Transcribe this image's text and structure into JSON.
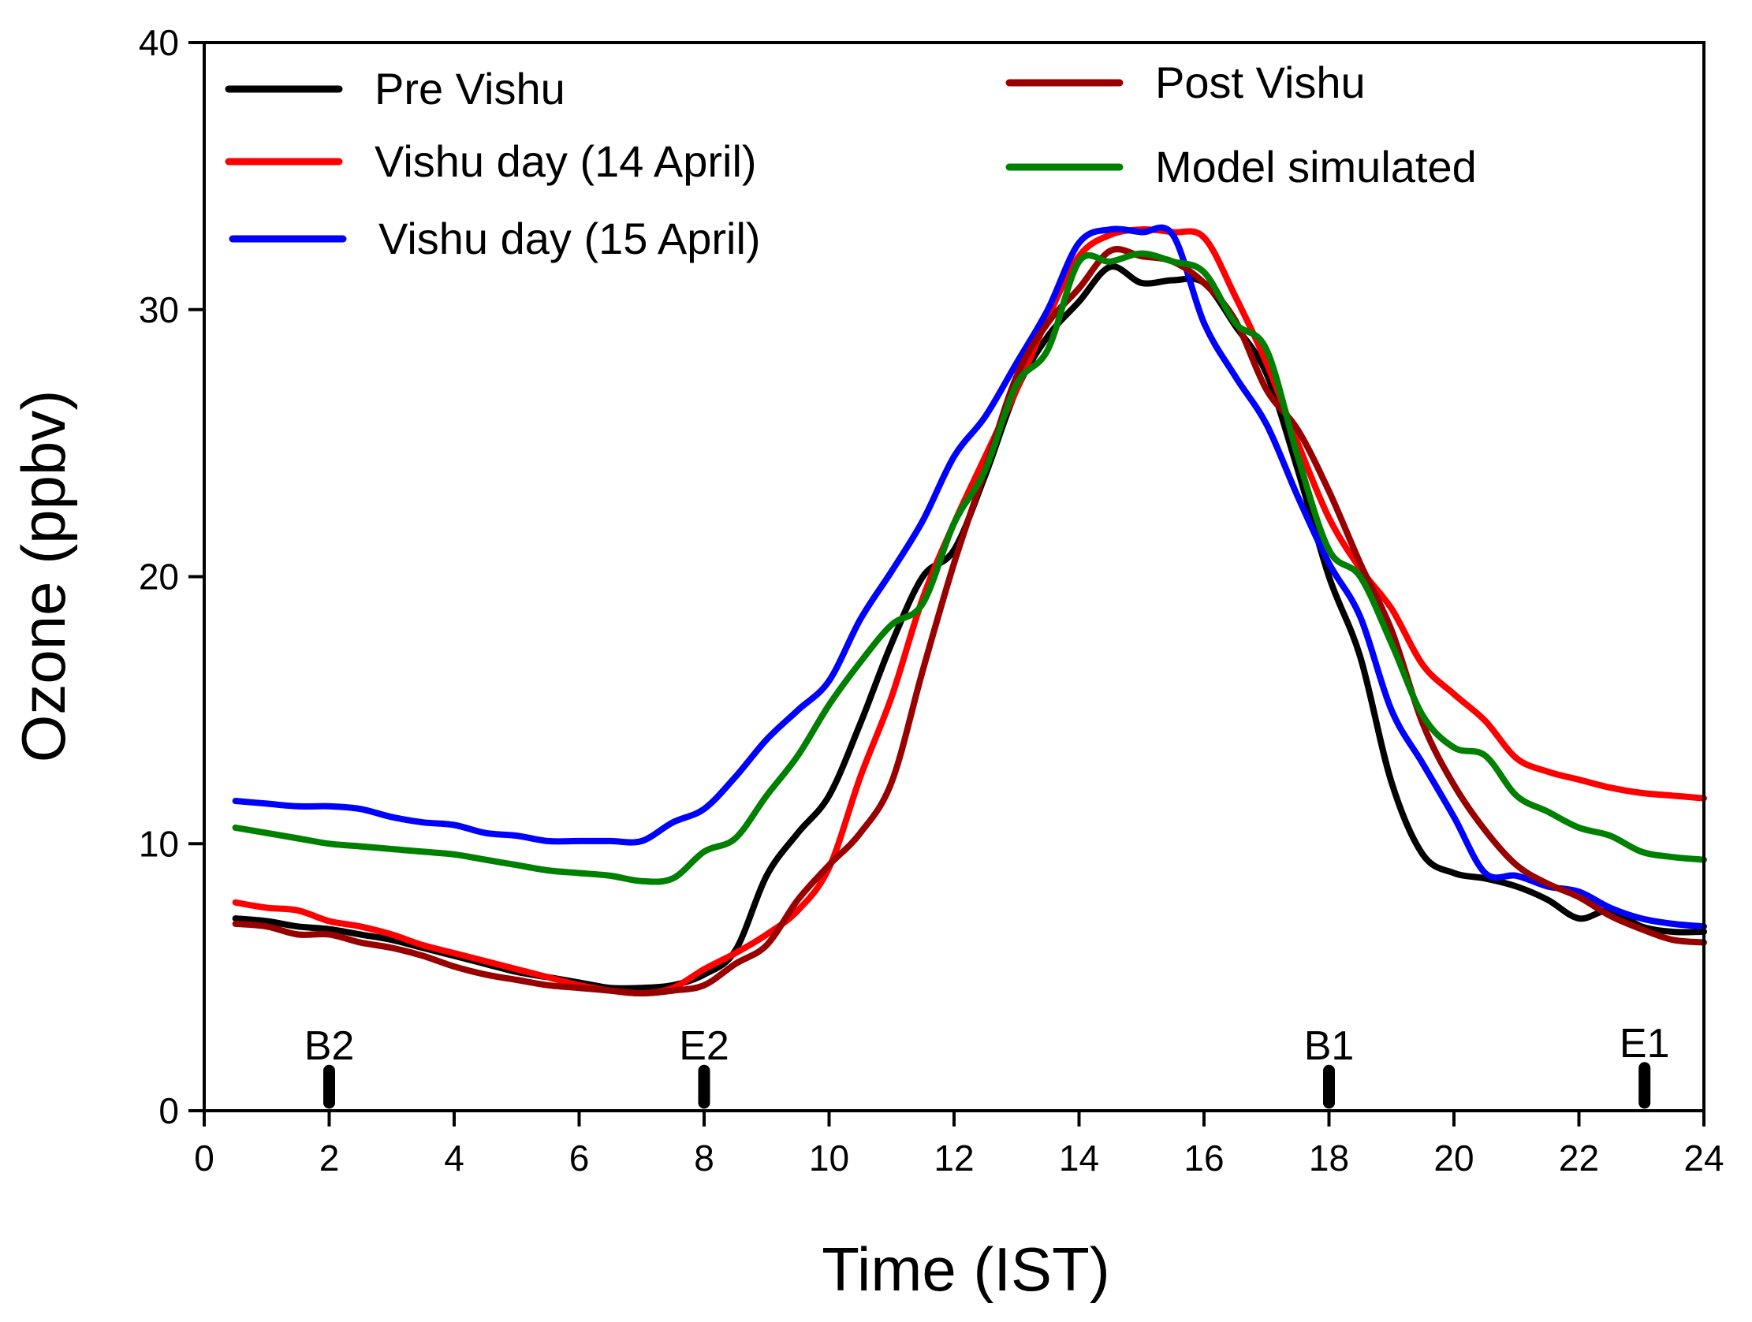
{
  "chart_data": {
    "type": "line",
    "xlabel": "Time (IST)",
    "ylabel": "Ozone (ppbv)",
    "xlim": [
      0,
      24
    ],
    "ylim": [
      0,
      40
    ],
    "xticks": [
      0,
      2,
      4,
      6,
      8,
      10,
      12,
      14,
      16,
      18,
      20,
      22,
      24
    ],
    "yticks": [
      0,
      10,
      20,
      30,
      40
    ],
    "grid": false,
    "legend_position": "top-left",
    "series": [
      {
        "name": "Pre Vishu",
        "color": "#000000",
        "x": [
          0.5,
          1,
          1.5,
          2,
          2.5,
          3,
          3.5,
          4,
          4.5,
          5,
          5.5,
          6,
          6.5,
          7,
          7.5,
          8,
          8.5,
          9,
          9.5,
          10,
          10.5,
          11,
          11.5,
          12,
          12.5,
          13,
          13.5,
          14,
          14.5,
          15,
          15.5,
          16,
          16.5,
          17,
          17.5,
          18,
          18.5,
          19,
          19.5,
          20,
          20.5,
          21,
          21.5,
          22,
          22.5,
          23,
          23.5,
          24
        ],
        "y": [
          7.2,
          7.1,
          6.9,
          6.8,
          6.6,
          6.4,
          6.1,
          5.8,
          5.5,
          5.2,
          5.0,
          4.8,
          4.6,
          4.6,
          4.7,
          5.1,
          6.0,
          8.8,
          10.4,
          11.8,
          14.5,
          17.5,
          20.0,
          21.0,
          23.8,
          27.0,
          29.0,
          30.3,
          31.6,
          31.0,
          31.1,
          31.0,
          29.4,
          27.6,
          24.0,
          20.0,
          17.0,
          12.3,
          9.6,
          8.9,
          8.7,
          8.4,
          7.9,
          7.2,
          7.5,
          6.9,
          6.7,
          6.7
        ]
      },
      {
        "name": "Vishu day (14 April)",
        "color": "#ff0000",
        "x": [
          0.5,
          1,
          1.5,
          2,
          2.5,
          3,
          3.5,
          4,
          4.5,
          5,
          5.5,
          6,
          6.5,
          7,
          7.5,
          8,
          8.5,
          9,
          9.5,
          10,
          10.5,
          11,
          11.5,
          12,
          12.5,
          13,
          13.5,
          14,
          14.5,
          15,
          15.5,
          16,
          16.5,
          17,
          17.5,
          18,
          18.5,
          19,
          19.5,
          20,
          20.5,
          21,
          21.5,
          22,
          22.5,
          23,
          23.5,
          24
        ],
        "y": [
          7.8,
          7.6,
          7.5,
          7.1,
          6.9,
          6.6,
          6.2,
          5.9,
          5.6,
          5.3,
          5.0,
          4.7,
          4.5,
          4.4,
          4.6,
          5.3,
          5.9,
          6.6,
          7.5,
          9.1,
          12.5,
          15.5,
          19.2,
          22.0,
          24.5,
          27.0,
          29.7,
          32.0,
          32.8,
          33.0,
          32.9,
          32.7,
          30.5,
          28.0,
          25.0,
          22.2,
          20.3,
          18.8,
          16.7,
          15.6,
          14.6,
          13.2,
          12.7,
          12.4,
          12.1,
          11.9,
          11.8,
          11.7
        ]
      },
      {
        "name": "Vishu day (15 April)",
        "color": "#0000ff",
        "x": [
          0.5,
          1,
          1.5,
          2,
          2.5,
          3,
          3.5,
          4,
          4.5,
          5,
          5.5,
          6,
          6.5,
          7,
          7.5,
          8,
          8.5,
          9,
          9.5,
          10,
          10.5,
          11,
          11.5,
          12,
          12.5,
          13,
          13.5,
          14,
          14.5,
          15,
          15.5,
          16,
          16.5,
          17,
          17.5,
          18,
          18.5,
          19,
          19.5,
          20,
          20.5,
          21,
          21.5,
          22,
          22.5,
          23,
          23.5,
          24
        ],
        "y": [
          11.6,
          11.5,
          11.4,
          11.4,
          11.3,
          11.0,
          10.8,
          10.7,
          10.4,
          10.3,
          10.1,
          10.1,
          10.1,
          10.1,
          10.8,
          11.3,
          12.5,
          13.9,
          15.0,
          16.1,
          18.4,
          20.2,
          22.1,
          24.5,
          26.0,
          28.0,
          30.0,
          32.5,
          33.0,
          32.9,
          32.8,
          29.5,
          27.5,
          25.7,
          23.0,
          20.5,
          18.5,
          15.0,
          13.0,
          11.0,
          8.9,
          8.8,
          8.4,
          8.2,
          7.6,
          7.2,
          7.0,
          6.9
        ]
      },
      {
        "name": "Post Vishu",
        "color": "#990000",
        "x": [
          0.5,
          1,
          1.5,
          2,
          2.5,
          3,
          3.5,
          4,
          4.5,
          5,
          5.5,
          6,
          6.5,
          7,
          7.5,
          8,
          8.5,
          9,
          9.5,
          10,
          10.5,
          11,
          11.5,
          12,
          12.5,
          13,
          13.5,
          14,
          14.5,
          15,
          15.5,
          16,
          16.5,
          17,
          17.5,
          18,
          18.5,
          19,
          19.5,
          20,
          20.5,
          21,
          21.5,
          22,
          22.5,
          23,
          23.5,
          24
        ],
        "y": [
          7.0,
          6.9,
          6.6,
          6.6,
          6.3,
          6.1,
          5.8,
          5.4,
          5.1,
          4.9,
          4.7,
          4.6,
          4.5,
          4.4,
          4.5,
          4.7,
          5.5,
          6.2,
          7.9,
          9.2,
          10.4,
          12.3,
          16.5,
          20.5,
          24.0,
          27.5,
          29.5,
          30.8,
          32.2,
          32.0,
          31.8,
          31.0,
          29.6,
          27.0,
          25.5,
          23.2,
          20.5,
          18.0,
          14.5,
          12.2,
          10.5,
          9.2,
          8.5,
          8.0,
          7.3,
          6.8,
          6.4,
          6.3
        ]
      },
      {
        "name": "Model simulated",
        "color": "#008000",
        "x": [
          0.5,
          1,
          1.5,
          2,
          2.5,
          3,
          3.5,
          4,
          4.5,
          5,
          5.5,
          6,
          6.5,
          7,
          7.5,
          8,
          8.5,
          9,
          9.5,
          10,
          10.5,
          11,
          11.5,
          12,
          12.5,
          13,
          13.5,
          14,
          14.5,
          15,
          15.5,
          16,
          16.5,
          17,
          17.5,
          18,
          18.5,
          19,
          19.5,
          20,
          20.5,
          21,
          21.5,
          22,
          22.5,
          23,
          23.5,
          24
        ],
        "y": [
          10.6,
          10.4,
          10.2,
          10.0,
          9.9,
          9.8,
          9.7,
          9.6,
          9.4,
          9.2,
          9.0,
          8.9,
          8.8,
          8.6,
          8.7,
          9.7,
          10.2,
          11.8,
          13.3,
          15.2,
          16.8,
          18.2,
          19.0,
          22.0,
          24.0,
          27.2,
          28.5,
          31.8,
          31.8,
          32.1,
          31.8,
          31.4,
          29.5,
          28.5,
          24.5,
          21.0,
          20.0,
          17.5,
          14.8,
          13.6,
          13.3,
          11.8,
          11.2,
          10.6,
          10.3,
          9.7,
          9.5,
          9.4
        ]
      }
    ],
    "markers": [
      {
        "label": "B2",
        "x": 2,
        "value_low": 0.3,
        "value_high": 1.5
      },
      {
        "label": "E2",
        "x": 8,
        "value_low": 0.3,
        "value_high": 1.5
      },
      {
        "label": "B1",
        "x": 18,
        "value_low": 0.3,
        "value_high": 1.5
      },
      {
        "label": "E1",
        "x": 23.05,
        "value_low": 0.3,
        "value_high": 1.6
      }
    ]
  }
}
